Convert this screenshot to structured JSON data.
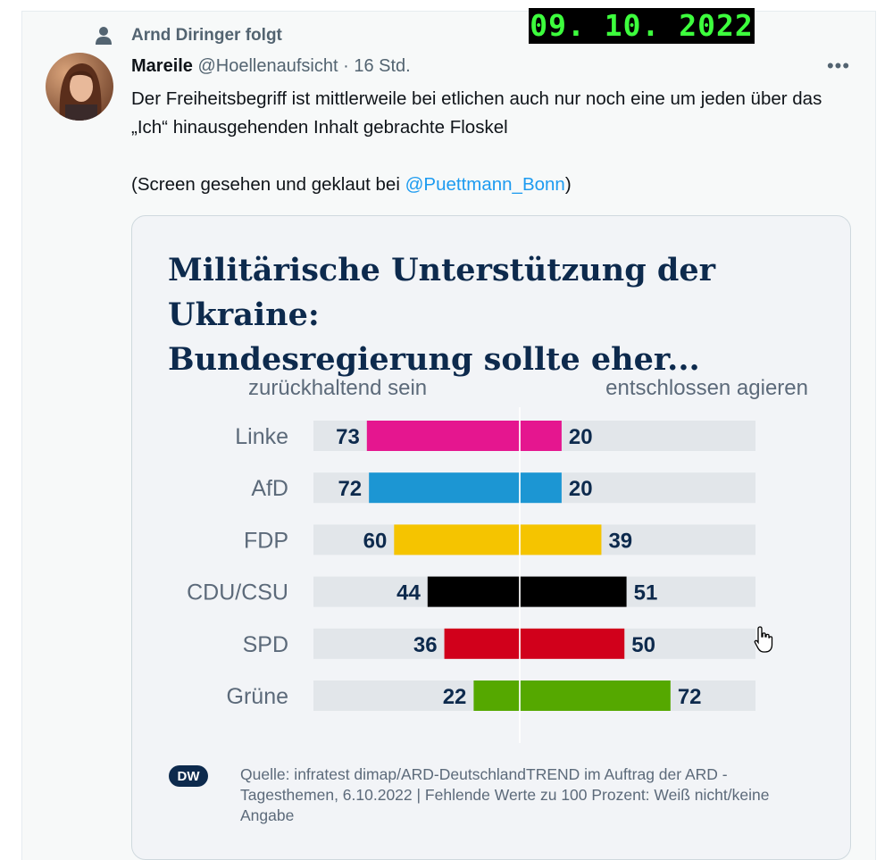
{
  "date_stamp": "09. 10. 2022",
  "social_context": {
    "text": "Arnd Diringer folgt",
    "icon": "person-icon"
  },
  "tweet": {
    "author_name": "Mareile",
    "handle": "@Hoellenaufsicht",
    "separator": "·",
    "time": "16 Std.",
    "more_icon": "more-icon",
    "text_line1": "Der Freiheitsbegriff ist mittlerweile bei etlichen auch nur noch eine um jeden über das „Ich“ hinausgehenden Inhalt gebrachte Floskel",
    "text_line2_prefix": "(Screen gesehen und geklaut bei ",
    "text_line2_mention": "@Puettmann_Bonn",
    "text_line2_suffix": ")"
  },
  "media": {
    "title_line1": "Militärische Unterstützung der Ukraine:",
    "title_line2": "Bundesregierung sollte eher...",
    "source_text": "Quelle: infratest dimap/ARD-DeutschlandTREND im Auftrag der ARD - Tagesthemen, 6.10.2022 | Fehlende Werte zu 100 Prozent: Weiß nicht/keine Angabe",
    "logo": "DW"
  },
  "chart_data": {
    "type": "bar",
    "orientation": "diverging-horizontal",
    "left_label": "zurückhaltend sein",
    "right_label": "entschlossen agieren",
    "categories": [
      "Linke",
      "AfD",
      "FDP",
      "CDU/CSU",
      "SPD",
      "Grüne"
    ],
    "series": [
      {
        "name": "zurückhaltend sein",
        "values": [
          73,
          72,
          60,
          44,
          36,
          22
        ]
      },
      {
        "name": "entschlossen agieren",
        "values": [
          20,
          20,
          39,
          51,
          50,
          72
        ]
      }
    ],
    "colors": [
      "#e5168f",
      "#1c96d3",
      "#f5c400",
      "#000000",
      "#d1001b",
      "#55a800"
    ],
    "track_color": "#e2e6ea",
    "value_color": "#0d2a4d"
  }
}
